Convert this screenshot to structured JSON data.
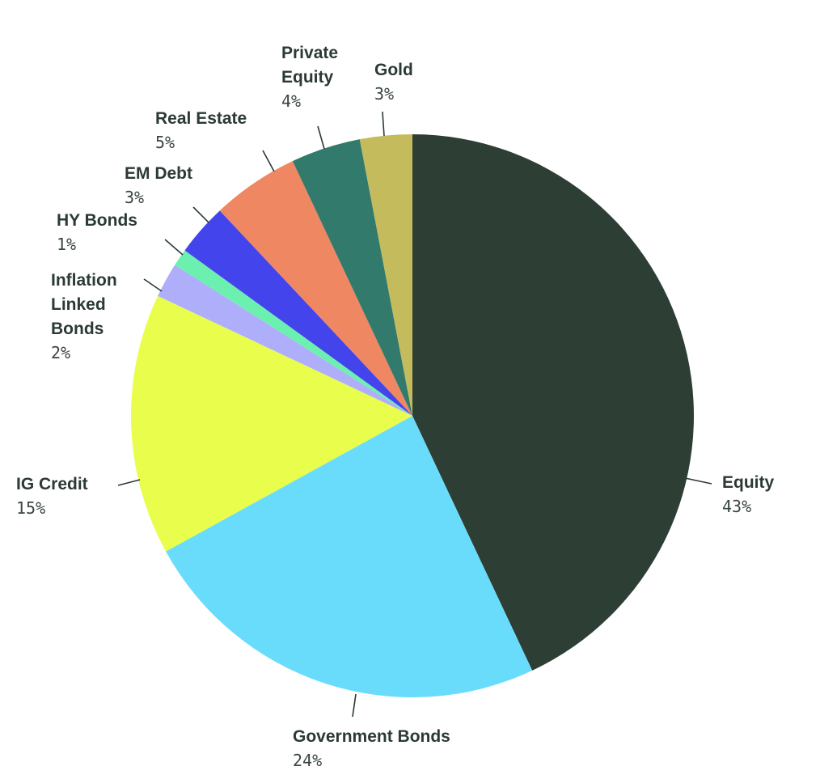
{
  "chart_data": {
    "type": "pie",
    "title": "",
    "start_angle_deg": 0,
    "direction": "clockwise",
    "slices": [
      {
        "label": [
          "Equity"
        ],
        "value": 43,
        "value_label": "43%",
        "color": "#2d3e35"
      },
      {
        "label": [
          "Government Bonds"
        ],
        "value": 24,
        "value_label": "24%",
        "color": "#6adcfb"
      },
      {
        "label": [
          "IG Credit"
        ],
        "value": 15,
        "value_label": "15%",
        "color": "#e9fe4c"
      },
      {
        "label": [
          "Inflation",
          "Linked",
          "Bonds"
        ],
        "value": 2,
        "value_label": "2%",
        "color": "#aeaefb"
      },
      {
        "label": [
          "HY Bonds"
        ],
        "value": 1,
        "value_label": "1%",
        "color": "#6cf0b0"
      },
      {
        "label": [
          "EM Debt"
        ],
        "value": 3,
        "value_label": "3%",
        "color": "#4444ec"
      },
      {
        "label": [
          "Real Estate"
        ],
        "value": 5,
        "value_label": "5%",
        "color": "#ef8763"
      },
      {
        "label": [
          "Private",
          "Equity"
        ],
        "value": 4,
        "value_label": "4%",
        "color": "#327a6b"
      },
      {
        "label": [
          "Gold"
        ],
        "value": 3,
        "value_label": "3%",
        "color": "#c4bb5d"
      }
    ]
  }
}
